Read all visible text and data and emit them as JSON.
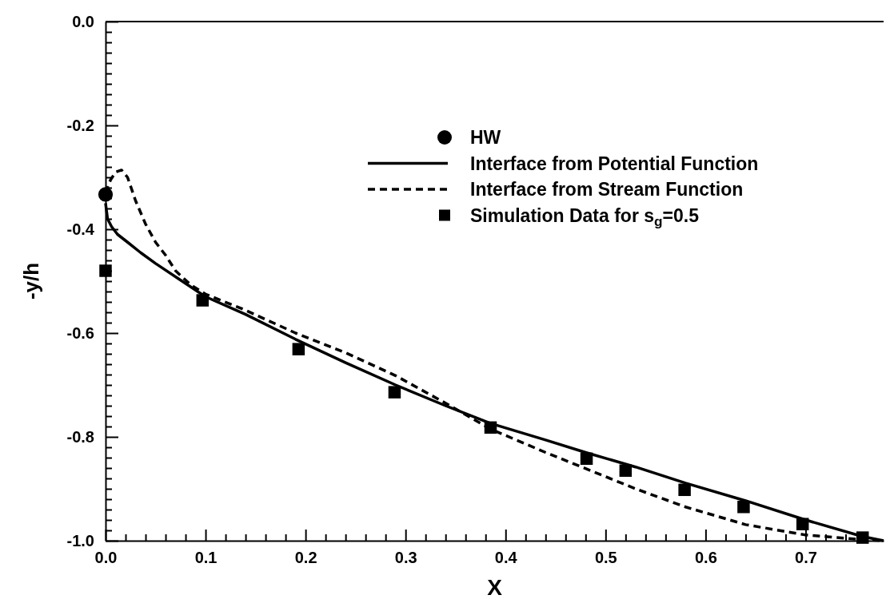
{
  "chart_data": {
    "type": "line",
    "xlabel": "X",
    "ylabel": "-y/h",
    "xlim": [
      0,
      0.778
    ],
    "ylim": [
      -1,
      0
    ],
    "xticks": [
      {
        "value": 0,
        "label": "0.0"
      },
      {
        "value": 0.02,
        "label": null
      },
      {
        "value": 0.04,
        "label": null
      },
      {
        "value": 0.06,
        "label": null
      },
      {
        "value": 0.08,
        "label": null
      },
      {
        "value": 0.1,
        "label": "0.1"
      },
      {
        "value": 0.12,
        "label": null
      },
      {
        "value": 0.14,
        "label": null
      },
      {
        "value": 0.16,
        "label": null
      },
      {
        "value": 0.18,
        "label": null
      },
      {
        "value": 0.2,
        "label": "0.2"
      },
      {
        "value": 0.22,
        "label": null
      },
      {
        "value": 0.24,
        "label": null
      },
      {
        "value": 0.26,
        "label": null
      },
      {
        "value": 0.28,
        "label": null
      },
      {
        "value": 0.3,
        "label": "0.3"
      },
      {
        "value": 0.32,
        "label": null
      },
      {
        "value": 0.34,
        "label": null
      },
      {
        "value": 0.36,
        "label": null
      },
      {
        "value": 0.38,
        "label": null
      },
      {
        "value": 0.4,
        "label": "0.4"
      },
      {
        "value": 0.42,
        "label": null
      },
      {
        "value": 0.44,
        "label": null
      },
      {
        "value": 0.46,
        "label": null
      },
      {
        "value": 0.48,
        "label": null
      },
      {
        "value": 0.5,
        "label": "0.5"
      },
      {
        "value": 0.52,
        "label": null
      },
      {
        "value": 0.54,
        "label": null
      },
      {
        "value": 0.56,
        "label": null
      },
      {
        "value": 0.58,
        "label": null
      },
      {
        "value": 0.6,
        "label": "0.6"
      },
      {
        "value": 0.62,
        "label": null
      },
      {
        "value": 0.64,
        "label": null
      },
      {
        "value": 0.66,
        "label": null
      },
      {
        "value": 0.68,
        "label": null
      },
      {
        "value": 0.7,
        "label": "0.7"
      },
      {
        "value": 0.72,
        "label": null
      },
      {
        "value": 0.74,
        "label": null
      },
      {
        "value": 0.76,
        "label": null
      }
    ],
    "yticks": [
      {
        "value": -1,
        "label": "-1.0"
      },
      {
        "value": -0.98,
        "label": null
      },
      {
        "value": -0.96,
        "label": null
      },
      {
        "value": -0.94,
        "label": null
      },
      {
        "value": -0.92,
        "label": null
      },
      {
        "value": -0.9,
        "label": null
      },
      {
        "value": -0.88,
        "label": null
      },
      {
        "value": -0.86,
        "label": null
      },
      {
        "value": -0.84,
        "label": null
      },
      {
        "value": -0.82,
        "label": null
      },
      {
        "value": -0.8,
        "label": "-0.8"
      },
      {
        "value": -0.78,
        "label": null
      },
      {
        "value": -0.76,
        "label": null
      },
      {
        "value": -0.74,
        "label": null
      },
      {
        "value": -0.72,
        "label": null
      },
      {
        "value": -0.7,
        "label": null
      },
      {
        "value": -0.68,
        "label": null
      },
      {
        "value": -0.66,
        "label": null
      },
      {
        "value": -0.64,
        "label": null
      },
      {
        "value": -0.62,
        "label": null
      },
      {
        "value": -0.6,
        "label": "-0.6"
      },
      {
        "value": -0.58,
        "label": null
      },
      {
        "value": -0.56,
        "label": null
      },
      {
        "value": -0.54,
        "label": null
      },
      {
        "value": -0.52,
        "label": null
      },
      {
        "value": -0.5,
        "label": null
      },
      {
        "value": -0.48,
        "label": null
      },
      {
        "value": -0.46,
        "label": null
      },
      {
        "value": -0.44,
        "label": null
      },
      {
        "value": -0.42,
        "label": null
      },
      {
        "value": -0.4,
        "label": "-0.4"
      },
      {
        "value": -0.38,
        "label": null
      },
      {
        "value": -0.36,
        "label": null
      },
      {
        "value": -0.34,
        "label": null
      },
      {
        "value": -0.32,
        "label": null
      },
      {
        "value": -0.3,
        "label": null
      },
      {
        "value": -0.28,
        "label": null
      },
      {
        "value": -0.26,
        "label": null
      },
      {
        "value": -0.24,
        "label": null
      },
      {
        "value": -0.22,
        "label": null
      },
      {
        "value": -0.2,
        "label": "-0.2"
      },
      {
        "value": -0.18,
        "label": null
      },
      {
        "value": -0.16,
        "label": null
      },
      {
        "value": -0.14,
        "label": null
      },
      {
        "value": -0.12,
        "label": null
      },
      {
        "value": -0.1,
        "label": null
      },
      {
        "value": -0.08,
        "label": null
      },
      {
        "value": -0.06,
        "label": null
      },
      {
        "value": -0.04,
        "label": null
      },
      {
        "value": -0.02,
        "label": null
      },
      {
        "value": 0,
        "label": "0.0"
      }
    ],
    "legend": "top right",
    "series": [
      {
        "name": "HW",
        "type": "scatter",
        "marker": "circle",
        "color": "#000000",
        "x": [
          0
        ],
        "values": [
          -0.333
        ]
      },
      {
        "name": "Interface from Potential Function",
        "type": "line",
        "line_style": "solid",
        "marker": "none",
        "color": "#000000",
        "x": [
          0,
          0.002,
          0.006,
          0.012,
          0.022,
          0.035,
          0.05,
          0.075,
          0.1,
          0.14,
          0.19,
          0.24,
          0.29,
          0.34,
          0.385,
          0.44,
          0.48,
          0.53,
          0.58,
          0.64,
          0.7,
          0.757,
          0.778
        ],
        "values": [
          -0.35,
          -0.38,
          -0.395,
          -0.41,
          -0.425,
          -0.445,
          -0.466,
          -0.498,
          -0.53,
          -0.564,
          -0.612,
          -0.657,
          -0.7,
          -0.74,
          -0.774,
          -0.806,
          -0.83,
          -0.858,
          -0.889,
          -0.923,
          -0.96,
          -0.992,
          -1.0
        ]
      },
      {
        "name": "Interface from Stream Function",
        "type": "line",
        "line_style": "dashed",
        "marker": "none",
        "color": "#000000",
        "x": [
          0,
          0.005,
          0.01,
          0.016,
          0.022,
          0.03,
          0.04,
          0.05,
          0.06,
          0.07,
          0.085,
          0.1,
          0.14,
          0.19,
          0.24,
          0.29,
          0.34,
          0.385,
          0.44,
          0.48,
          0.53,
          0.58,
          0.64,
          0.7,
          0.757,
          0.778
        ],
        "values": [
          -0.33,
          -0.305,
          -0.29,
          -0.286,
          -0.3,
          -0.345,
          -0.39,
          -0.425,
          -0.45,
          -0.48,
          -0.507,
          -0.525,
          -0.556,
          -0.6,
          -0.638,
          -0.682,
          -0.735,
          -0.785,
          -0.83,
          -0.861,
          -0.9,
          -0.935,
          -0.969,
          -0.989,
          -0.998,
          -1.0
        ]
      },
      {
        "name": "Simulation Data for s$_{g}$=0.5",
        "type": "scatter",
        "marker": "square",
        "color": "#000000",
        "x": [
          0,
          0.097,
          0.193,
          0.289,
          0.385,
          0.481,
          0.52,
          0.579,
          0.638,
          0.697,
          0.757
        ],
        "values": [
          -0.48,
          -0.537,
          -0.631,
          -0.714,
          -0.782,
          -0.842,
          -0.865,
          -0.902,
          -0.935,
          -0.968,
          -0.994
        ]
      }
    ]
  }
}
